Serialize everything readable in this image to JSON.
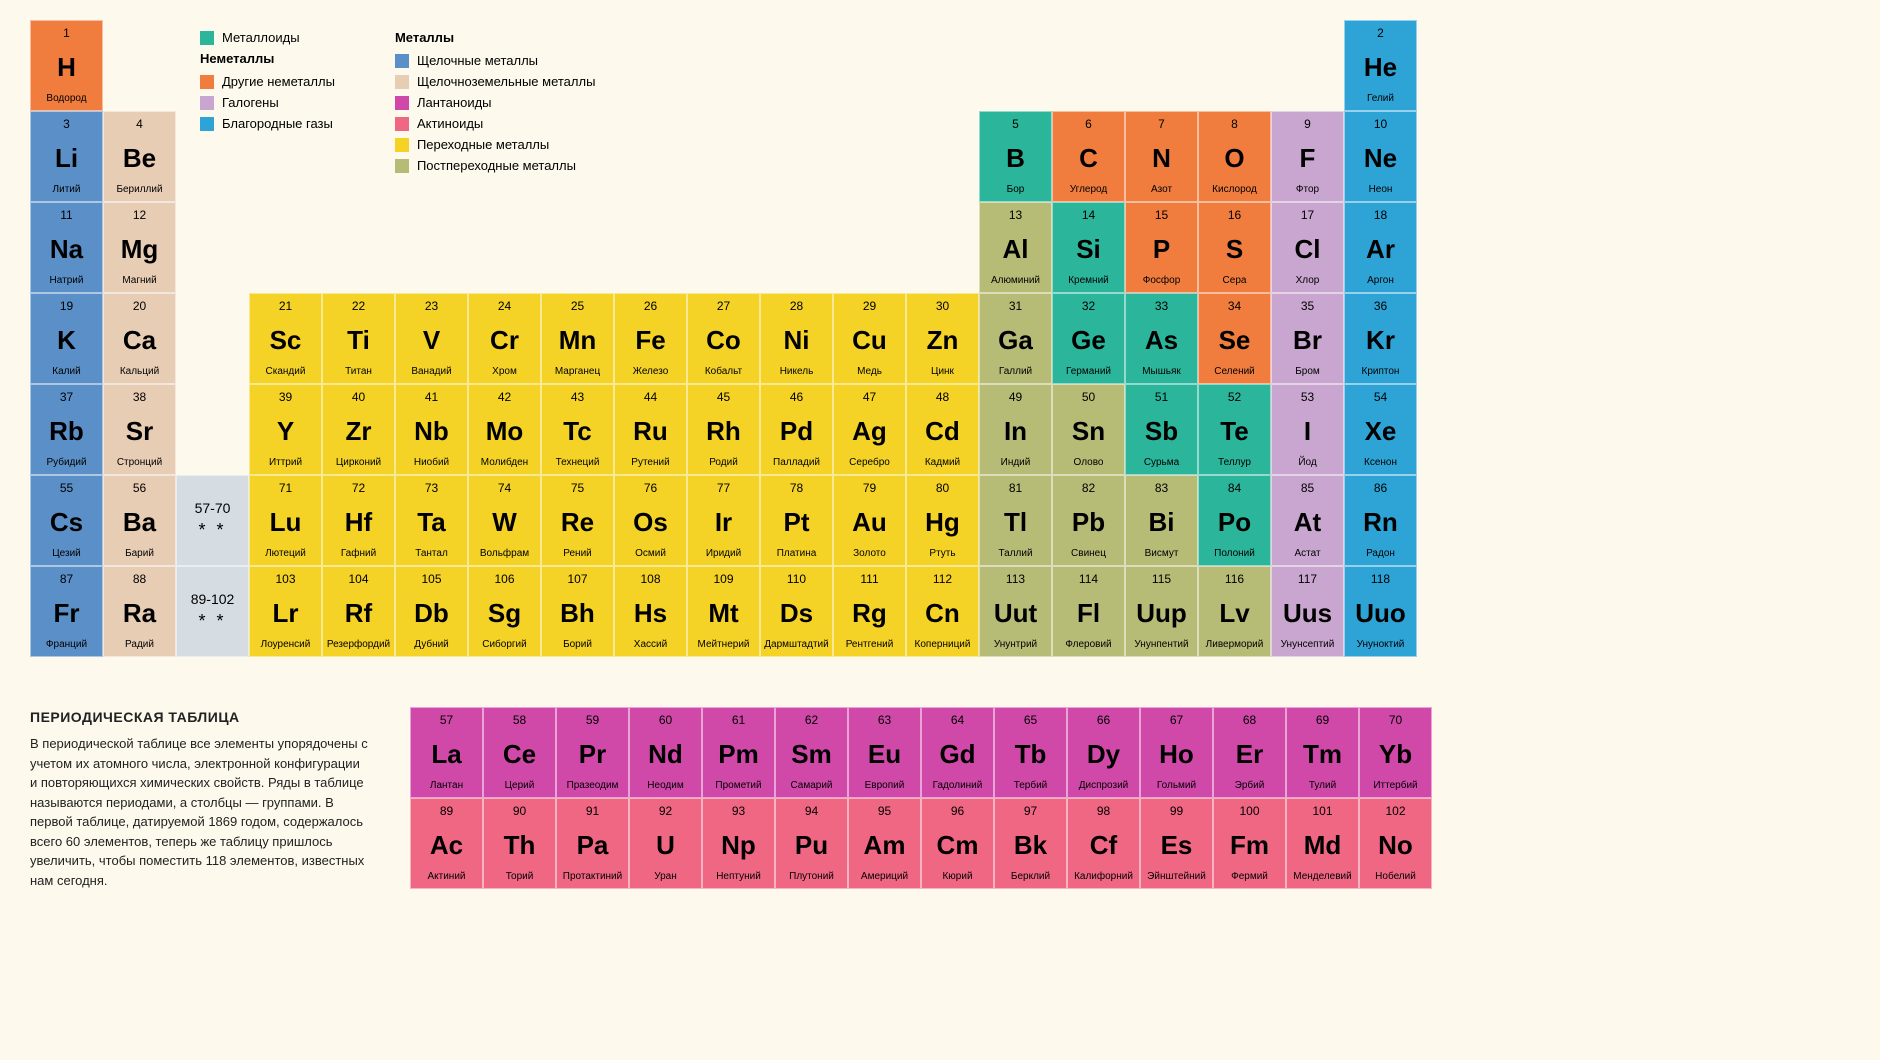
{
  "colors": {
    "bg": "#fdf9ed",
    "metalloid": "#2bb59b",
    "other_nonmetal": "#f07d3e",
    "halogen": "#c9a6cf",
    "noble_gas": "#2ea3d6",
    "alkali": "#5a8fc7",
    "alkaline_earth": "#e8cdb5",
    "lanthanide": "#d048a8",
    "actinide": "#f06784",
    "transition": "#f5d326",
    "post_transition": "#b6bb76",
    "placeholder": "#d6dde2"
  },
  "legend": {
    "col1": {
      "items": [
        {
          "color": "#2bb59b",
          "label": "Металлоиды"
        }
      ],
      "header2": "Неметаллы",
      "items2": [
        {
          "color": "#f07d3e",
          "label": "Другие неметаллы"
        },
        {
          "color": "#c9a6cf",
          "label": "Галогены"
        },
        {
          "color": "#2ea3d6",
          "label": "Благородные газы"
        }
      ]
    },
    "col2": {
      "header": "Металлы",
      "items": [
        {
          "color": "#5a8fc7",
          "label": "Щелочные металлы"
        },
        {
          "color": "#e8cdb5",
          "label": "Щелочноземельные металлы"
        },
        {
          "color": "#d048a8",
          "label": "Лантаноиды"
        },
        {
          "color": "#f06784",
          "label": "Актиноиды"
        },
        {
          "color": "#f5d326",
          "label": "Переходные металлы"
        },
        {
          "color": "#b6bb76",
          "label": "Постпереходные металлы"
        }
      ]
    }
  },
  "description": {
    "title": "ПЕРИОДИЧЕСКАЯ ТАБЛИЦА",
    "body": "В периодической таблице все элементы упорядочены с учетом их атомного числа, электронной конфигурации и повторяющихся химических свойств. Ряды в таблице называются периодами, а столбцы — группами. В первой таблице, датируемой 1869 годом, содержалось всего 60 элементов, теперь же таблицу пришлось увеличить, чтобы поместить 118 элементов, известных нам сегодня."
  },
  "placeholders": [
    {
      "row": 6,
      "range": "57-70"
    },
    {
      "row": 7,
      "range": "89-102"
    }
  ],
  "main": [
    {
      "n": 1,
      "s": "H",
      "name": "Водород",
      "cat": "other_nonmetal",
      "r": 1,
      "c": 1
    },
    {
      "n": 2,
      "s": "He",
      "name": "Гелий",
      "cat": "noble_gas",
      "r": 1,
      "c": 19
    },
    {
      "n": 3,
      "s": "Li",
      "name": "Литий",
      "cat": "alkali",
      "r": 2,
      "c": 1
    },
    {
      "n": 4,
      "s": "Be",
      "name": "Бериллий",
      "cat": "alkaline_earth",
      "r": 2,
      "c": 2
    },
    {
      "n": 5,
      "s": "B",
      "name": "Бор",
      "cat": "metalloid",
      "r": 2,
      "c": 14
    },
    {
      "n": 6,
      "s": "C",
      "name": "Углерод",
      "cat": "other_nonmetal",
      "r": 2,
      "c": 15
    },
    {
      "n": 7,
      "s": "N",
      "name": "Азот",
      "cat": "other_nonmetal",
      "r": 2,
      "c": 16
    },
    {
      "n": 8,
      "s": "O",
      "name": "Кислород",
      "cat": "other_nonmetal",
      "r": 2,
      "c": 17
    },
    {
      "n": 9,
      "s": "F",
      "name": "Фтор",
      "cat": "halogen",
      "r": 2,
      "c": 18
    },
    {
      "n": 10,
      "s": "Ne",
      "name": "Неон",
      "cat": "noble_gas",
      "r": 2,
      "c": 19
    },
    {
      "n": 11,
      "s": "Na",
      "name": "Натрий",
      "cat": "alkali",
      "r": 3,
      "c": 1
    },
    {
      "n": 12,
      "s": "Mg",
      "name": "Магний",
      "cat": "alkaline_earth",
      "r": 3,
      "c": 2
    },
    {
      "n": 13,
      "s": "Al",
      "name": "Алюминий",
      "cat": "post_transition",
      "r": 3,
      "c": 14
    },
    {
      "n": 14,
      "s": "Si",
      "name": "Кремний",
      "cat": "metalloid",
      "r": 3,
      "c": 15
    },
    {
      "n": 15,
      "s": "P",
      "name": "Фосфор",
      "cat": "other_nonmetal",
      "r": 3,
      "c": 16
    },
    {
      "n": 16,
      "s": "S",
      "name": "Сера",
      "cat": "other_nonmetal",
      "r": 3,
      "c": 17
    },
    {
      "n": 17,
      "s": "Cl",
      "name": "Хлор",
      "cat": "halogen",
      "r": 3,
      "c": 18
    },
    {
      "n": 18,
      "s": "Ar",
      "name": "Аргон",
      "cat": "noble_gas",
      "r": 3,
      "c": 19
    },
    {
      "n": 19,
      "s": "K",
      "name": "Калий",
      "cat": "alkali",
      "r": 4,
      "c": 1
    },
    {
      "n": 20,
      "s": "Ca",
      "name": "Кальций",
      "cat": "alkaline_earth",
      "r": 4,
      "c": 2
    },
    {
      "n": 21,
      "s": "Sc",
      "name": "Скандий",
      "cat": "transition",
      "r": 4,
      "c": 4
    },
    {
      "n": 22,
      "s": "Ti",
      "name": "Титан",
      "cat": "transition",
      "r": 4,
      "c": 5
    },
    {
      "n": 23,
      "s": "V",
      "name": "Ванадий",
      "cat": "transition",
      "r": 4,
      "c": 6
    },
    {
      "n": 24,
      "s": "Cr",
      "name": "Хром",
      "cat": "transition",
      "r": 4,
      "c": 7
    },
    {
      "n": 25,
      "s": "Mn",
      "name": "Марганец",
      "cat": "transition",
      "r": 4,
      "c": 8
    },
    {
      "n": 26,
      "s": "Fe",
      "name": "Железо",
      "cat": "transition",
      "r": 4,
      "c": 9
    },
    {
      "n": 27,
      "s": "Co",
      "name": "Кобальт",
      "cat": "transition",
      "r": 4,
      "c": 10
    },
    {
      "n": 28,
      "s": "Ni",
      "name": "Никель",
      "cat": "transition",
      "r": 4,
      "c": 11
    },
    {
      "n": 29,
      "s": "Cu",
      "name": "Медь",
      "cat": "transition",
      "r": 4,
      "c": 12
    },
    {
      "n": 30,
      "s": "Zn",
      "name": "Цинк",
      "cat": "transition",
      "r": 4,
      "c": 13
    },
    {
      "n": 31,
      "s": "Ga",
      "name": "Галлий",
      "cat": "post_transition",
      "r": 4,
      "c": 14
    },
    {
      "n": 32,
      "s": "Ge",
      "name": "Германий",
      "cat": "metalloid",
      "r": 4,
      "c": 15
    },
    {
      "n": 33,
      "s": "As",
      "name": "Мышьяк",
      "cat": "metalloid",
      "r": 4,
      "c": 16
    },
    {
      "n": 34,
      "s": "Se",
      "name": "Селений",
      "cat": "other_nonmetal",
      "r": 4,
      "c": 17
    },
    {
      "n": 35,
      "s": "Br",
      "name": "Бром",
      "cat": "halogen",
      "r": 4,
      "c": 18
    },
    {
      "n": 36,
      "s": "Kr",
      "name": "Криптон",
      "cat": "noble_gas",
      "r": 4,
      "c": 19
    },
    {
      "n": 37,
      "s": "Rb",
      "name": "Рубидий",
      "cat": "alkali",
      "r": 5,
      "c": 1
    },
    {
      "n": 38,
      "s": "Sr",
      "name": "Стронций",
      "cat": "alkaline_earth",
      "r": 5,
      "c": 2
    },
    {
      "n": 39,
      "s": "Y",
      "name": "Иттрий",
      "cat": "transition",
      "r": 5,
      "c": 4
    },
    {
      "n": 40,
      "s": "Zr",
      "name": "Цирконий",
      "cat": "transition",
      "r": 5,
      "c": 5
    },
    {
      "n": 41,
      "s": "Nb",
      "name": "Ниобий",
      "cat": "transition",
      "r": 5,
      "c": 6
    },
    {
      "n": 42,
      "s": "Mo",
      "name": "Молибден",
      "cat": "transition",
      "r": 5,
      "c": 7
    },
    {
      "n": 43,
      "s": "Tc",
      "name": "Технеций",
      "cat": "transition",
      "r": 5,
      "c": 8
    },
    {
      "n": 44,
      "s": "Ru",
      "name": "Рутений",
      "cat": "transition",
      "r": 5,
      "c": 9
    },
    {
      "n": 45,
      "s": "Rh",
      "name": "Родий",
      "cat": "transition",
      "r": 5,
      "c": 10
    },
    {
      "n": 46,
      "s": "Pd",
      "name": "Палладий",
      "cat": "transition",
      "r": 5,
      "c": 11
    },
    {
      "n": 47,
      "s": "Ag",
      "name": "Серебро",
      "cat": "transition",
      "r": 5,
      "c": 12
    },
    {
      "n": 48,
      "s": "Cd",
      "name": "Кадмий",
      "cat": "transition",
      "r": 5,
      "c": 13
    },
    {
      "n": 49,
      "s": "In",
      "name": "Индий",
      "cat": "post_transition",
      "r": 5,
      "c": 14
    },
    {
      "n": 50,
      "s": "Sn",
      "name": "Олово",
      "cat": "post_transition",
      "r": 5,
      "c": 15
    },
    {
      "n": 51,
      "s": "Sb",
      "name": "Сурьма",
      "cat": "metalloid",
      "r": 5,
      "c": 16
    },
    {
      "n": 52,
      "s": "Te",
      "name": "Теллур",
      "cat": "metalloid",
      "r": 5,
      "c": 17
    },
    {
      "n": 53,
      "s": "I",
      "name": "Йод",
      "cat": "halogen",
      "r": 5,
      "c": 18
    },
    {
      "n": 54,
      "s": "Xe",
      "name": "Ксенон",
      "cat": "noble_gas",
      "r": 5,
      "c": 19
    },
    {
      "n": 55,
      "s": "Cs",
      "name": "Цезий",
      "cat": "alkali",
      "r": 6,
      "c": 1
    },
    {
      "n": 56,
      "s": "Ba",
      "name": "Барий",
      "cat": "alkaline_earth",
      "r": 6,
      "c": 2
    },
    {
      "n": 71,
      "s": "Lu",
      "name": "Лютеций",
      "cat": "transition",
      "r": 6,
      "c": 4
    },
    {
      "n": 72,
      "s": "Hf",
      "name": "Гафний",
      "cat": "transition",
      "r": 6,
      "c": 5
    },
    {
      "n": 73,
      "s": "Ta",
      "name": "Тантал",
      "cat": "transition",
      "r": 6,
      "c": 6
    },
    {
      "n": 74,
      "s": "W",
      "name": "Вольфрам",
      "cat": "transition",
      "r": 6,
      "c": 7
    },
    {
      "n": 75,
      "s": "Re",
      "name": "Рений",
      "cat": "transition",
      "r": 6,
      "c": 8
    },
    {
      "n": 76,
      "s": "Os",
      "name": "Осмий",
      "cat": "transition",
      "r": 6,
      "c": 9
    },
    {
      "n": 77,
      "s": "Ir",
      "name": "Иридий",
      "cat": "transition",
      "r": 6,
      "c": 10
    },
    {
      "n": 78,
      "s": "Pt",
      "name": "Платина",
      "cat": "transition",
      "r": 6,
      "c": 11
    },
    {
      "n": 79,
      "s": "Au",
      "name": "Золото",
      "cat": "transition",
      "r": 6,
      "c": 12
    },
    {
      "n": 80,
      "s": "Hg",
      "name": "Ртуть",
      "cat": "transition",
      "r": 6,
      "c": 13
    },
    {
      "n": 81,
      "s": "Tl",
      "name": "Таллий",
      "cat": "post_transition",
      "r": 6,
      "c": 14
    },
    {
      "n": 82,
      "s": "Pb",
      "name": "Свинец",
      "cat": "post_transition",
      "r": 6,
      "c": 15
    },
    {
      "n": 83,
      "s": "Bi",
      "name": "Висмут",
      "cat": "post_transition",
      "r": 6,
      "c": 16
    },
    {
      "n": 84,
      "s": "Po",
      "name": "Полоний",
      "cat": "metalloid",
      "r": 6,
      "c": 17
    },
    {
      "n": 85,
      "s": "At",
      "name": "Астат",
      "cat": "halogen",
      "r": 6,
      "c": 18
    },
    {
      "n": 86,
      "s": "Rn",
      "name": "Радон",
      "cat": "noble_gas",
      "r": 6,
      "c": 19
    },
    {
      "n": 87,
      "s": "Fr",
      "name": "Франций",
      "cat": "alkali",
      "r": 7,
      "c": 1
    },
    {
      "n": 88,
      "s": "Ra",
      "name": "Радий",
      "cat": "alkaline_earth",
      "r": 7,
      "c": 2
    },
    {
      "n": 103,
      "s": "Lr",
      "name": "Лоуренсий",
      "cat": "transition",
      "r": 7,
      "c": 4
    },
    {
      "n": 104,
      "s": "Rf",
      "name": "Резерфордий",
      "cat": "transition",
      "r": 7,
      "c": 5
    },
    {
      "n": 105,
      "s": "Db",
      "name": "Дубний",
      "cat": "transition",
      "r": 7,
      "c": 6
    },
    {
      "n": 106,
      "s": "Sg",
      "name": "Сиборгий",
      "cat": "transition",
      "r": 7,
      "c": 7
    },
    {
      "n": 107,
      "s": "Bh",
      "name": "Борий",
      "cat": "transition",
      "r": 7,
      "c": 8
    },
    {
      "n": 108,
      "s": "Hs",
      "name": "Хассий",
      "cat": "transition",
      "r": 7,
      "c": 9
    },
    {
      "n": 109,
      "s": "Mt",
      "name": "Мейтнерий",
      "cat": "transition",
      "r": 7,
      "c": 10
    },
    {
      "n": 110,
      "s": "Ds",
      "name": "Дармштадтий",
      "cat": "transition",
      "r": 7,
      "c": 11
    },
    {
      "n": 111,
      "s": "Rg",
      "name": "Рентгений",
      "cat": "transition",
      "r": 7,
      "c": 12
    },
    {
      "n": 112,
      "s": "Cn",
      "name": "Коперниций",
      "cat": "transition",
      "r": 7,
      "c": 13
    },
    {
      "n": 113,
      "s": "Uut",
      "name": "Унунтрий",
      "cat": "post_transition",
      "r": 7,
      "c": 14
    },
    {
      "n": 114,
      "s": "Fl",
      "name": "Флеровий",
      "cat": "post_transition",
      "r": 7,
      "c": 15
    },
    {
      "n": 115,
      "s": "Uup",
      "name": "Унунпентий",
      "cat": "post_transition",
      "r": 7,
      "c": 16
    },
    {
      "n": 116,
      "s": "Lv",
      "name": "Ливерморий",
      "cat": "post_transition",
      "r": 7,
      "c": 17
    },
    {
      "n": 117,
      "s": "Uus",
      "name": "Унунсептий",
      "cat": "halogen",
      "r": 7,
      "c": 18
    },
    {
      "n": 118,
      "s": "Uuo",
      "name": "Унуноктий",
      "cat": "noble_gas",
      "r": 7,
      "c": 19
    }
  ],
  "fblock": [
    {
      "n": 57,
      "s": "La",
      "name": "Лантан",
      "cat": "lanthanide",
      "r": 1,
      "c": 1
    },
    {
      "n": 58,
      "s": "Ce",
      "name": "Церий",
      "cat": "lanthanide",
      "r": 1,
      "c": 2
    },
    {
      "n": 59,
      "s": "Pr",
      "name": "Празеодим",
      "cat": "lanthanide",
      "r": 1,
      "c": 3
    },
    {
      "n": 60,
      "s": "Nd",
      "name": "Неодим",
      "cat": "lanthanide",
      "r": 1,
      "c": 4
    },
    {
      "n": 61,
      "s": "Pm",
      "name": "Прометий",
      "cat": "lanthanide",
      "r": 1,
      "c": 5
    },
    {
      "n": 62,
      "s": "Sm",
      "name": "Самарий",
      "cat": "lanthanide",
      "r": 1,
      "c": 6
    },
    {
      "n": 63,
      "s": "Eu",
      "name": "Европий",
      "cat": "lanthanide",
      "r": 1,
      "c": 7
    },
    {
      "n": 64,
      "s": "Gd",
      "name": "Гадолиний",
      "cat": "lanthanide",
      "r": 1,
      "c": 8
    },
    {
      "n": 65,
      "s": "Tb",
      "name": "Тербий",
      "cat": "lanthanide",
      "r": 1,
      "c": 9
    },
    {
      "n": 66,
      "s": "Dy",
      "name": "Диспрозий",
      "cat": "lanthanide",
      "r": 1,
      "c": 10
    },
    {
      "n": 67,
      "s": "Ho",
      "name": "Гольмий",
      "cat": "lanthanide",
      "r": 1,
      "c": 11
    },
    {
      "n": 68,
      "s": "Er",
      "name": "Эрбий",
      "cat": "lanthanide",
      "r": 1,
      "c": 12
    },
    {
      "n": 69,
      "s": "Tm",
      "name": "Тулий",
      "cat": "lanthanide",
      "r": 1,
      "c": 13
    },
    {
      "n": 70,
      "s": "Yb",
      "name": "Иттербий",
      "cat": "lanthanide",
      "r": 1,
      "c": 14
    },
    {
      "n": 89,
      "s": "Ac",
      "name": "Актиний",
      "cat": "actinide",
      "r": 2,
      "c": 1
    },
    {
      "n": 90,
      "s": "Th",
      "name": "Торий",
      "cat": "actinide",
      "r": 2,
      "c": 2
    },
    {
      "n": 91,
      "s": "Pa",
      "name": "Протактиний",
      "cat": "actinide",
      "r": 2,
      "c": 3
    },
    {
      "n": 92,
      "s": "U",
      "name": "Уран",
      "cat": "actinide",
      "r": 2,
      "c": 4
    },
    {
      "n": 93,
      "s": "Np",
      "name": "Нептуний",
      "cat": "actinide",
      "r": 2,
      "c": 5
    },
    {
      "n": 94,
      "s": "Pu",
      "name": "Плутоний",
      "cat": "actinide",
      "r": 2,
      "c": 6
    },
    {
      "n": 95,
      "s": "Am",
      "name": "Америций",
      "cat": "actinide",
      "r": 2,
      "c": 7
    },
    {
      "n": 96,
      "s": "Cm",
      "name": "Кюрий",
      "cat": "actinide",
      "r": 2,
      "c": 8
    },
    {
      "n": 97,
      "s": "Bk",
      "name": "Берклий",
      "cat": "actinide",
      "r": 2,
      "c": 9
    },
    {
      "n": 98,
      "s": "Cf",
      "name": "Калифорний",
      "cat": "actinide",
      "r": 2,
      "c": 10
    },
    {
      "n": 99,
      "s": "Es",
      "name": "Эйнштейний",
      "cat": "actinide",
      "r": 2,
      "c": 11
    },
    {
      "n": 100,
      "s": "Fm",
      "name": "Фермий",
      "cat": "actinide",
      "r": 2,
      "c": 12
    },
    {
      "n": 101,
      "s": "Md",
      "name": "Менделевий",
      "cat": "actinide",
      "r": 2,
      "c": 13
    },
    {
      "n": 102,
      "s": "No",
      "name": "Нобелий",
      "cat": "actinide",
      "r": 2,
      "c": 14
    }
  ]
}
